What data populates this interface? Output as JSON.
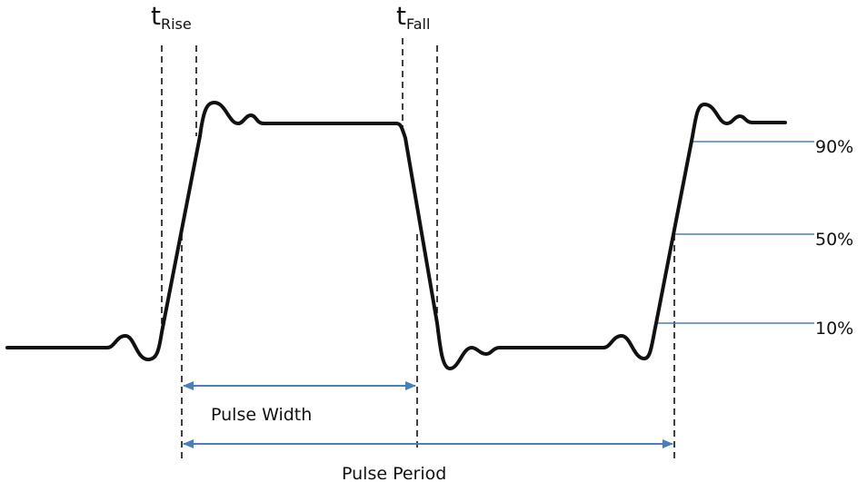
{
  "labels": {
    "rise_main": "t",
    "rise_sub": "Rise",
    "fall_main": "t",
    "fall_sub": "Fall",
    "pulse_width": "Pulse Width",
    "pulse_period": "Pulse Period"
  },
  "levels": [
    {
      "label": "90%"
    },
    {
      "label": "50%"
    },
    {
      "label": "10%"
    }
  ],
  "colors": {
    "waveform": "#111111",
    "guide": "#111111",
    "level_line": "#4a7ebb",
    "arrow": "#4a7ebb"
  }
}
